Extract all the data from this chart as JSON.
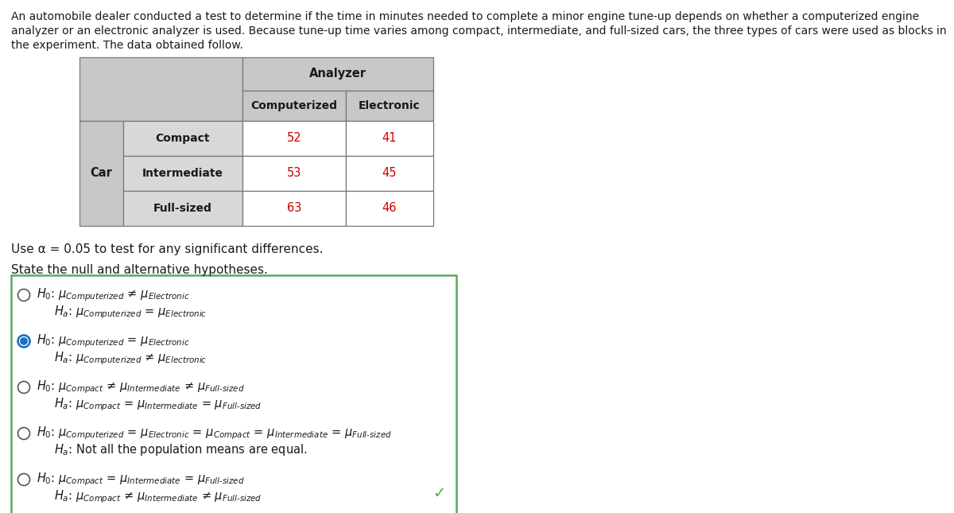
{
  "intro_lines": [
    "An automobile dealer conducted a test to determine if the time in minutes needed to complete a minor engine tune-up depends on whether a computerized engine",
    "analyzer or an electronic analyzer is used. Because tune-up time varies among compact, intermediate, and full-sized cars, the three types of cars were used as blocks in",
    "the experiment. The data obtained follow."
  ],
  "table": {
    "header_top": "Analyzer",
    "header_sub1": "Computerized",
    "header_sub2": "Electronic",
    "row_label_main": "Car",
    "rows": [
      {
        "car": "Compact",
        "comp": "52",
        "elec": "41"
      },
      {
        "car": "Intermediate",
        "comp": "53",
        "elec": "45"
      },
      {
        "car": "Full-sized",
        "comp": "63",
        "elec": "46"
      }
    ]
  },
  "use_alpha_line": "Use α = 0.05 to test for any significant differences.",
  "state_line": "State the null and alternative hypotheses.",
  "options": [
    {
      "selected": false,
      "h0": "$H_0$: $\\mu_{\\mathit{Computerized}}$ ≠ $\\mu_{\\mathit{Electronic}}$",
      "ha": "$H_a$: $\\mu_{\\mathit{Computerized}}$ = $\\mu_{\\mathit{Electronic}}$"
    },
    {
      "selected": true,
      "h0": "$H_0$: $\\mu_{\\mathit{Computerized}}$ = $\\mu_{\\mathit{Electronic}}$",
      "ha": "$H_a$: $\\mu_{\\mathit{Computerized}}$ ≠ $\\mu_{\\mathit{Electronic}}$"
    },
    {
      "selected": false,
      "h0": "$H_0$: $\\mu_{\\mathit{Compact}}$ ≠ $\\mu_{\\mathit{Intermediate}}$ ≠ $\\mu_{\\mathit{Full\\text{-}sized}}$",
      "ha": "$H_a$: $\\mu_{\\mathit{Compact}}$ = $\\mu_{\\mathit{Intermediate}}$ = $\\mu_{\\mathit{Full\\text{-}sized}}$"
    },
    {
      "selected": false,
      "h0": "$H_0$: $\\mu_{\\mathit{Computerized}}$ = $\\mu_{\\mathit{Electronic}}$ = $\\mu_{\\mathit{Compact}}$ = $\\mu_{\\mathit{Intermediate}}$ = $\\mu_{\\mathit{Full\\text{-}sized}}$",
      "ha": "$H_a$: Not all the population means are equal."
    },
    {
      "selected": false,
      "h0": "$H_0$: $\\mu_{\\mathit{Compact}}$ = $\\mu_{\\mathit{Intermediate}}$ = $\\mu_{\\mathit{Full\\text{-}sized}}$",
      "ha": "$H_a$: $\\mu_{\\mathit{Compact}}$ ≠ $\\mu_{\\mathit{Intermediate}}$ ≠ $\\mu_{\\mathit{Full\\text{-}sized}}$"
    }
  ],
  "bg_color": "#ffffff",
  "table_header_bg": "#c8c8c8",
  "table_cell_bg": "#d8d8d8",
  "table_data_bg": "#ffffff",
  "box_border_color": "#5aaa5a",
  "radio_fill_color": "#1a6fc4",
  "radio_ring_color": "#1a6fc4",
  "data_color": "#cc0000",
  "checkmark_color": "#4aaa4a",
  "text_color": "#1a1a1a",
  "intro_fontsize": 10.0,
  "table_fontsize": 10.5,
  "body_fontsize": 11.0,
  "option_fontsize": 10.5
}
